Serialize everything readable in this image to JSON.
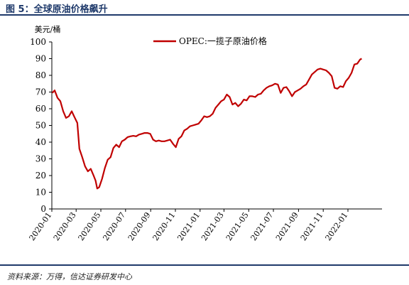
{
  "figure": {
    "title": "图 5：全球原油价格飙升",
    "source": "资料来源：万得，信达证券研发中心"
  },
  "chart_data": {
    "type": "line",
    "title": "",
    "ylabel": "美元/桶",
    "xlabel": "",
    "ylim": [
      0,
      100
    ],
    "y_ticks": [
      0,
      10,
      20,
      30,
      40,
      50,
      60,
      70,
      80,
      90,
      100
    ],
    "x_ticks": [
      "2020-01",
      "2020-03",
      "2020-05",
      "2020-07",
      "2020-09",
      "2020-11",
      "2021-01",
      "2021-03",
      "2021-05",
      "2021-07",
      "2021-09",
      "2021-11",
      "2022-01"
    ],
    "legend_position": "top-center",
    "grid": false,
    "series": [
      {
        "name": "OPEC:一揽子原油价格",
        "color": "#c00000",
        "points": [
          [
            "2020-01-02",
            69.5
          ],
          [
            "2020-01-08",
            71.0
          ],
          [
            "2020-01-15",
            66.5
          ],
          [
            "2020-01-22",
            64.5
          ],
          [
            "2020-01-29",
            58.5
          ],
          [
            "2020-02-05",
            54.5
          ],
          [
            "2020-02-12",
            55.5
          ],
          [
            "2020-02-19",
            58.5
          ],
          [
            "2020-02-26",
            55.0
          ],
          [
            "2020-03-04",
            51.5
          ],
          [
            "2020-03-09",
            36.0
          ],
          [
            "2020-03-16",
            31.0
          ],
          [
            "2020-03-23",
            25.5
          ],
          [
            "2020-03-30",
            22.5
          ],
          [
            "2020-04-06",
            24.0
          ],
          [
            "2020-04-13",
            20.0
          ],
          [
            "2020-04-18",
            17.0
          ],
          [
            "2020-04-22",
            12.2
          ],
          [
            "2020-04-27",
            13.0
          ],
          [
            "2020-05-04",
            18.0
          ],
          [
            "2020-05-11",
            24.5
          ],
          [
            "2020-05-18",
            29.5
          ],
          [
            "2020-05-25",
            31.0
          ],
          [
            "2020-06-01",
            36.5
          ],
          [
            "2020-06-08",
            38.5
          ],
          [
            "2020-06-15",
            37.0
          ],
          [
            "2020-06-22",
            40.5
          ],
          [
            "2020-06-29",
            41.5
          ],
          [
            "2020-07-06",
            43.0
          ],
          [
            "2020-07-13",
            43.5
          ],
          [
            "2020-07-20",
            43.8
          ],
          [
            "2020-07-27",
            43.5
          ],
          [
            "2020-08-03",
            44.5
          ],
          [
            "2020-08-10",
            45.0
          ],
          [
            "2020-08-17",
            45.5
          ],
          [
            "2020-08-24",
            45.5
          ],
          [
            "2020-08-31",
            45.0
          ],
          [
            "2020-09-07",
            41.5
          ],
          [
            "2020-09-14",
            40.5
          ],
          [
            "2020-09-21",
            41.0
          ],
          [
            "2020-09-28",
            40.5
          ],
          [
            "2020-10-05",
            40.5
          ],
          [
            "2020-10-12",
            41.0
          ],
          [
            "2020-10-19",
            41.5
          ],
          [
            "2020-10-26",
            39.0
          ],
          [
            "2020-11-02",
            37.0
          ],
          [
            "2020-11-09",
            42.0
          ],
          [
            "2020-11-16",
            43.5
          ],
          [
            "2020-11-23",
            47.0
          ],
          [
            "2020-11-30",
            48.0
          ],
          [
            "2020-12-07",
            49.5
          ],
          [
            "2020-12-14",
            50.0
          ],
          [
            "2020-12-21",
            50.5
          ],
          [
            "2020-12-28",
            51.0
          ],
          [
            "2021-01-04",
            53.0
          ],
          [
            "2021-01-11",
            55.5
          ],
          [
            "2021-01-18",
            55.0
          ],
          [
            "2021-01-25",
            55.5
          ],
          [
            "2021-02-01",
            57.0
          ],
          [
            "2021-02-08",
            60.5
          ],
          [
            "2021-02-15",
            62.5
          ],
          [
            "2021-02-22",
            64.5
          ],
          [
            "2021-03-01",
            65.5
          ],
          [
            "2021-03-08",
            68.5
          ],
          [
            "2021-03-15",
            67.0
          ],
          [
            "2021-03-22",
            62.5
          ],
          [
            "2021-03-29",
            63.5
          ],
          [
            "2021-04-05",
            61.5
          ],
          [
            "2021-04-12",
            63.0
          ],
          [
            "2021-04-19",
            65.5
          ],
          [
            "2021-04-26",
            65.0
          ],
          [
            "2021-05-03",
            67.5
          ],
          [
            "2021-05-10",
            67.5
          ],
          [
            "2021-05-17",
            67.0
          ],
          [
            "2021-05-24",
            68.5
          ],
          [
            "2021-05-31",
            69.0
          ],
          [
            "2021-06-07",
            71.0
          ],
          [
            "2021-06-14",
            72.5
          ],
          [
            "2021-06-21",
            73.5
          ],
          [
            "2021-06-28",
            74.0
          ],
          [
            "2021-07-05",
            75.0
          ],
          [
            "2021-07-12",
            74.5
          ],
          [
            "2021-07-19",
            69.5
          ],
          [
            "2021-07-26",
            72.5
          ],
          [
            "2021-08-02",
            73.0
          ],
          [
            "2021-08-09",
            70.5
          ],
          [
            "2021-08-16",
            67.5
          ],
          [
            "2021-08-23",
            70.0
          ],
          [
            "2021-08-30",
            71.0
          ],
          [
            "2021-09-06",
            72.0
          ],
          [
            "2021-09-13",
            73.5
          ],
          [
            "2021-09-20",
            74.5
          ],
          [
            "2021-09-27",
            77.5
          ],
          [
            "2021-10-04",
            80.5
          ],
          [
            "2021-10-11",
            82.0
          ],
          [
            "2021-10-18",
            83.5
          ],
          [
            "2021-10-25",
            84.0
          ],
          [
            "2021-11-01",
            83.5
          ],
          [
            "2021-11-08",
            83.0
          ],
          [
            "2021-11-15",
            81.5
          ],
          [
            "2021-11-22",
            79.5
          ],
          [
            "2021-11-29",
            72.5
          ],
          [
            "2021-12-06",
            72.0
          ],
          [
            "2021-12-13",
            73.5
          ],
          [
            "2021-12-20",
            73.0
          ],
          [
            "2021-12-27",
            76.5
          ],
          [
            "2022-01-03",
            78.5
          ],
          [
            "2022-01-10",
            81.5
          ],
          [
            "2022-01-17",
            86.5
          ],
          [
            "2022-01-24",
            87.0
          ],
          [
            "2022-01-31",
            89.5
          ],
          [
            "2022-02-04",
            90.0
          ]
        ]
      }
    ]
  }
}
